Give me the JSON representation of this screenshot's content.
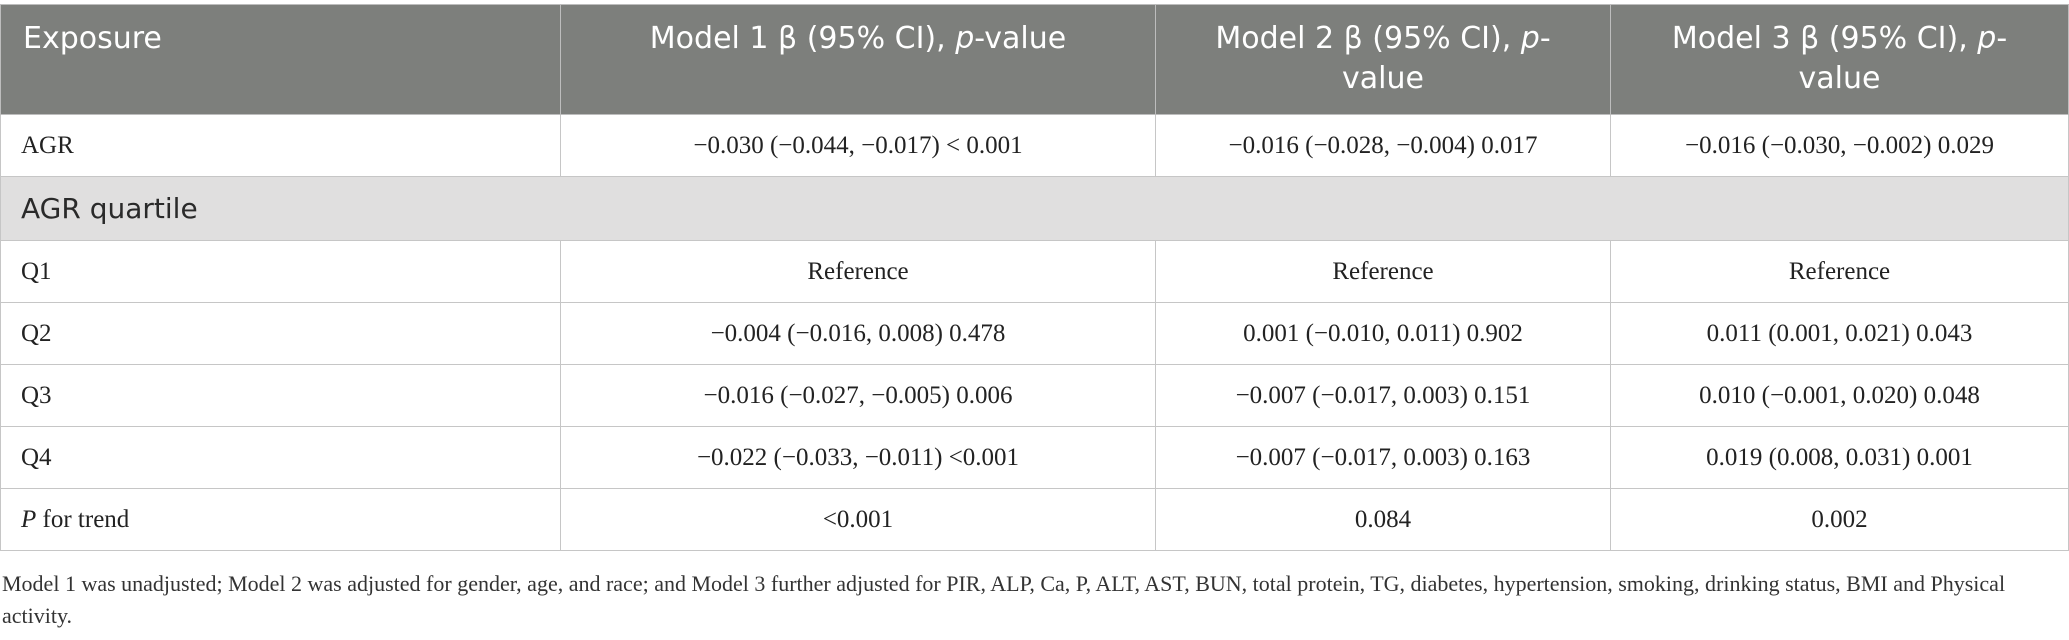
{
  "table": {
    "headers": [
      {
        "text": "Exposure"
      },
      {
        "pre": "Model 1 β (95% CI), ",
        "italic": "p",
        "post": "-value"
      },
      {
        "pre": "Model 2 β (95% CI), ",
        "italic": "p",
        "post": "-value"
      },
      {
        "pre": "Model 3 β (95% CI), ",
        "italic": "p",
        "post": "-value"
      }
    ],
    "rows": [
      {
        "label": "AGR",
        "cells": [
          "−0.030 (−0.044, −0.017) < 0.001",
          "−0.016 (−0.028, −0.004) 0.017",
          "−0.016 (−0.030, −0.002) 0.029"
        ]
      },
      {
        "section": "AGR quartile"
      },
      {
        "label": "Q1",
        "cells": [
          "Reference",
          "Reference",
          "Reference"
        ]
      },
      {
        "label": "Q2",
        "cells": [
          "−0.004 (−0.016, 0.008) 0.478",
          "0.001 (−0.010, 0.011) 0.902",
          "0.011 (0.001, 0.021) 0.043"
        ]
      },
      {
        "label": "Q3",
        "cells": [
          "−0.016 (−0.027, −0.005) 0.006",
          "−0.007 (−0.017, 0.003) 0.151",
          "0.010 (−0.001, 0.020) 0.048"
        ]
      },
      {
        "label": "Q4",
        "cells": [
          "−0.022 (−0.033, −0.011) <0.001",
          "−0.007 (−0.017, 0.003) 0.163",
          "0.019 (0.008, 0.031) 0.001"
        ]
      },
      {
        "label_italic": "P",
        "label": " for trend",
        "cells": [
          "<0.001",
          "0.084",
          "0.002"
        ]
      }
    ]
  },
  "footnote": "Model 1 was unadjusted; Model 2 was adjusted for gender, age, and race; and Model 3 further adjusted for PIR, ALP, Ca, P, ALT, AST, BUN, total protein, TG, diabetes, hypertension, smoking, drinking status, BMI and Physical activity."
}
